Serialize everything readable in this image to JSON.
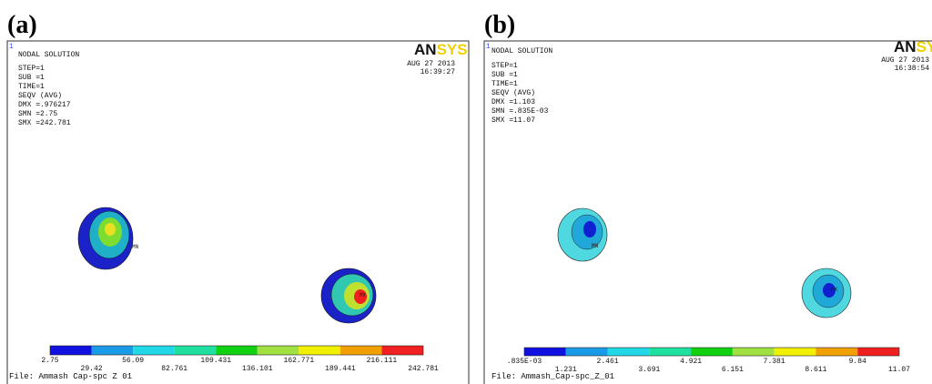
{
  "panels": [
    {
      "label": "(a)",
      "corner": "1",
      "logo_left": "AN",
      "logo_right": "SYS",
      "info": [
        "NODAL SOLUTION",
        "STEP=1",
        "SUB =1",
        "TIME=1",
        "SEQV     (AVG)",
        "DMX =.976217",
        "SMN =2.75",
        "SMX =242.781"
      ],
      "date": "AUG 27 2013",
      "time": "16:39:27",
      "legend_labels": [
        "2.75",
        "29.42",
        "56.09",
        "82.761",
        "109.431",
        "136.101",
        "162.771",
        "189.441",
        "216.111",
        "242.781"
      ],
      "min_marker": "MN",
      "max_marker": "MX",
      "file": "File: Ammash Cap-spc Z 01"
    },
    {
      "label": "(b)",
      "corner": "1",
      "logo_left": "AN",
      "logo_right": "SYS",
      "info": [
        "NODAL SOLUTION",
        "STEP=1",
        "SUB =1",
        "TIME=1",
        "SEQV     (AVG)",
        "DMX =1.103",
        "SMN =.835E-03",
        "SMX =11.07"
      ],
      "date": "AUG 27 2013",
      "time": "16:38:54",
      "legend_labels": [
        ".835E-03",
        "1.231",
        "2.461",
        "3.691",
        "4.921",
        "6.151",
        "7.381",
        "8.611",
        "9.84",
        "11.07"
      ],
      "min_marker": "MN",
      "max_marker": "MX",
      "file": "File: Ammash_Cap-spc_Z_01"
    }
  ]
}
